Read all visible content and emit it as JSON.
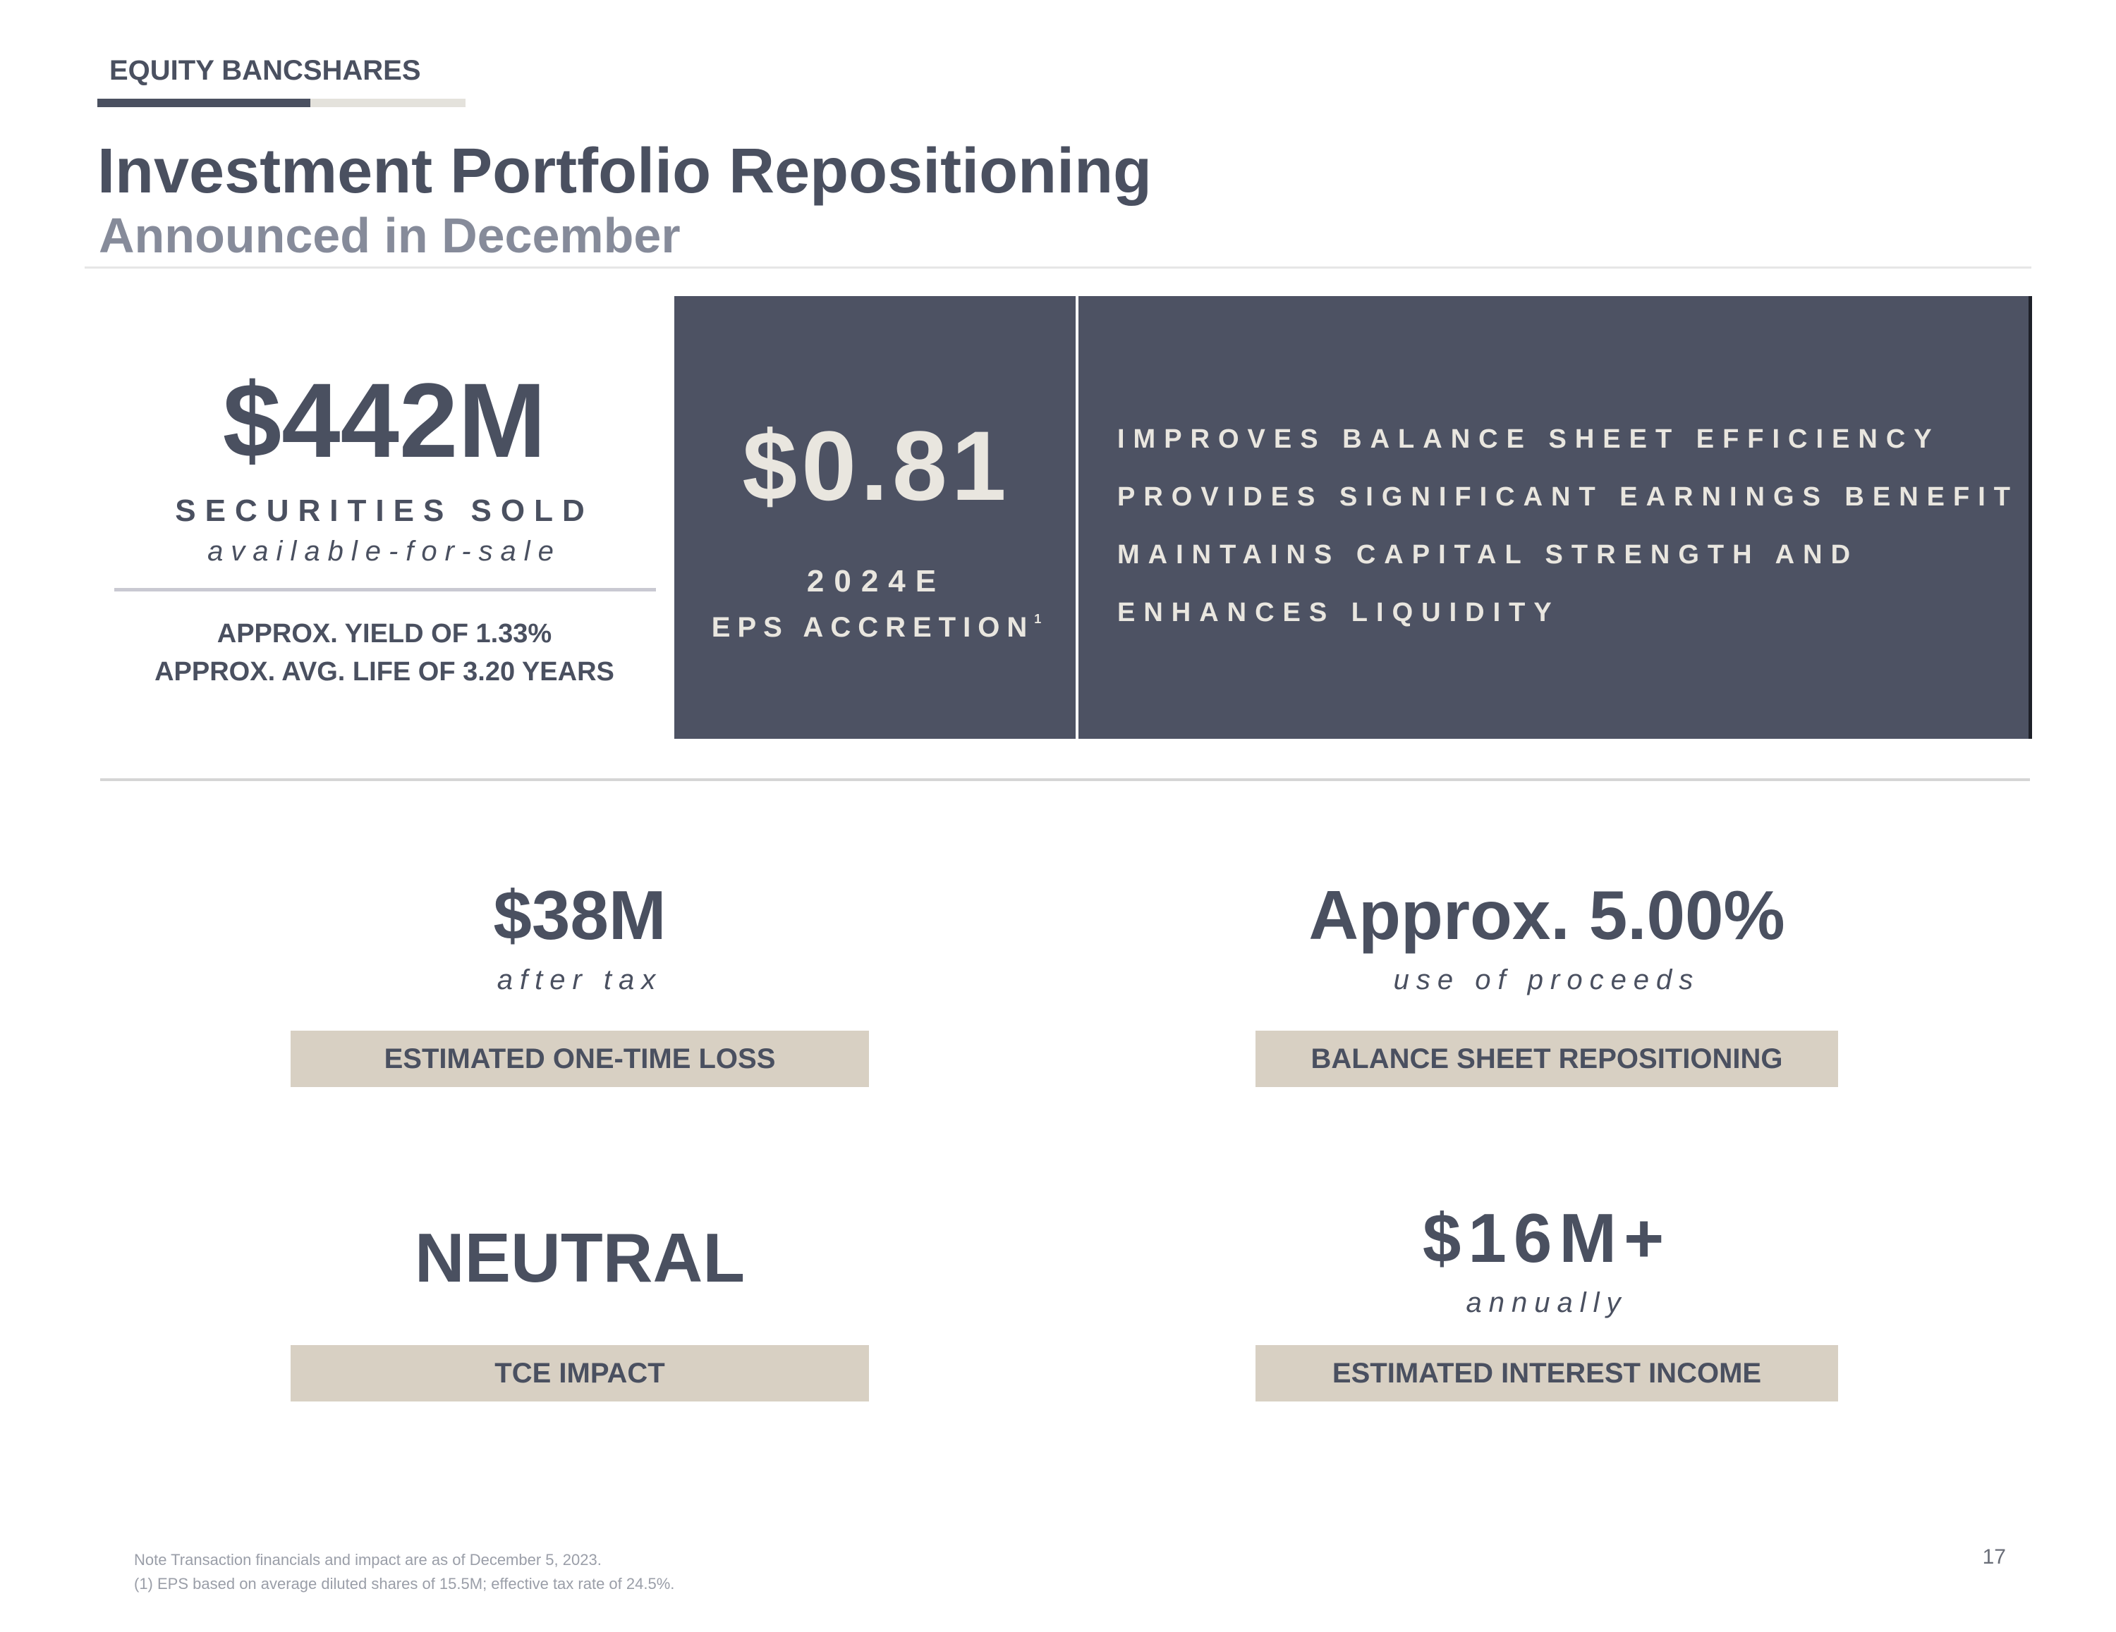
{
  "header": {
    "brand": "EQUITY BANCSHARES",
    "title": "Investment Portfolio Repositioning",
    "subtitle": "Announced in December"
  },
  "securities": {
    "amount": "$442M",
    "label": "SECURITIES SOLD",
    "sublabel": "available-for-sale",
    "yield": "APPROX. YIELD OF 1.33%",
    "avg_life": "APPROX. AVG. LIFE OF 3.20 YEARS"
  },
  "eps": {
    "value": "$0.81",
    "year": "2024E",
    "label": "EPS ACCRETION",
    "footnote_ref": "1"
  },
  "benefits": [
    "IMPROVES BALANCE SHEET EFFICIENCY",
    "PROVIDES SIGNIFICANT EARNINGS BENEFIT",
    "MAINTAINS CAPITAL STRENGTH AND",
    "ENHANCES LIQUIDITY"
  ],
  "metrics": {
    "loss": {
      "value": "$38M",
      "sub": "after tax",
      "label": "ESTIMATED ONE-TIME LOSS"
    },
    "proceeds": {
      "value": "Approx. 5.00%",
      "sub": "use of proceeds",
      "label": "BALANCE SHEET REPOSITIONING"
    },
    "tce": {
      "value": "NEUTRAL",
      "label": "TCE IMPACT"
    },
    "income": {
      "value": "$16M+",
      "sub": "annually",
      "label": "ESTIMATED INTEREST INCOME"
    }
  },
  "footer": {
    "note1": "Note Transaction financials and impact are as of December 5, 2023.",
    "note2": "(1) EPS based on average diluted shares of 15.5M; effective tax rate of 24.5%.",
    "page_number": "17"
  }
}
